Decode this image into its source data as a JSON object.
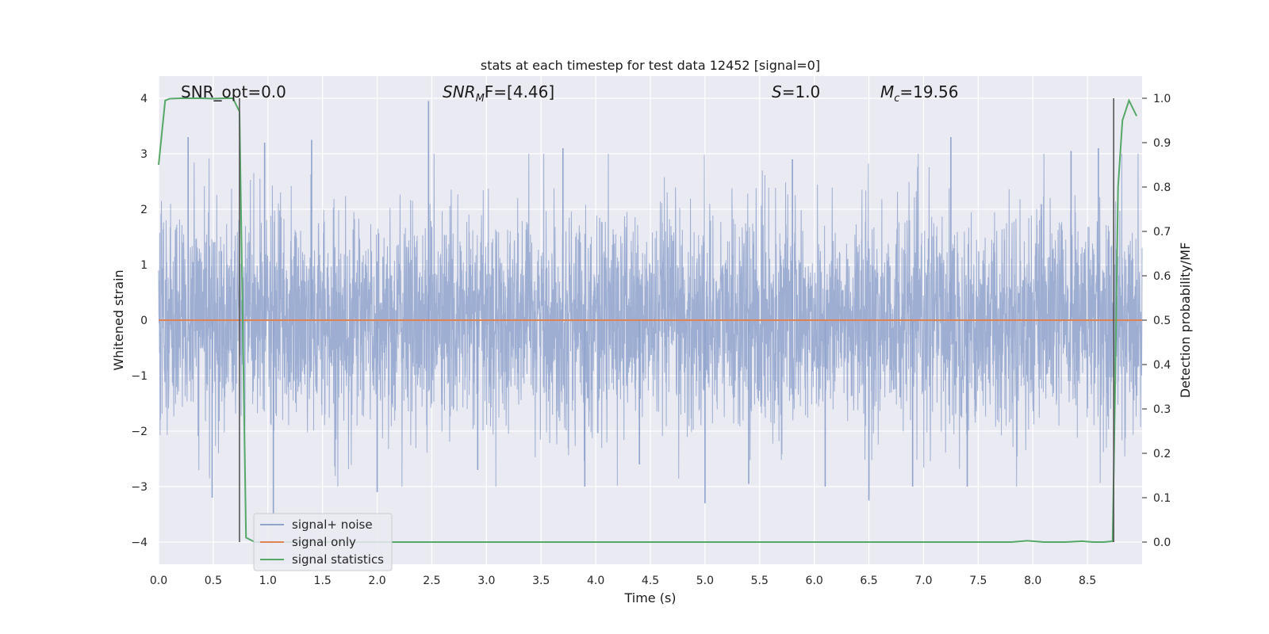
{
  "chart_data": {
    "type": "line",
    "title": "stats at each timestep for test data 12452 [signal=0]",
    "xlabel": "Time (s)",
    "ylabel_left": "Whitened strain",
    "ylabel_right": "Detection probability/MF",
    "xlim": [
      0,
      9.0
    ],
    "ylim_left": [
      -4.4,
      4.4
    ],
    "ylim_right": [
      -0.05,
      1.05
    ],
    "xticks": [
      0.0,
      0.5,
      1.0,
      1.5,
      2.0,
      2.5,
      3.0,
      3.5,
      4.0,
      4.5,
      5.0,
      5.5,
      6.0,
      6.5,
      7.0,
      7.5,
      8.0,
      8.5
    ],
    "xtick_labels": [
      "0.0",
      "0.5",
      "1.0",
      "1.5",
      "2.0",
      "2.5",
      "3.0",
      "3.5",
      "4.0",
      "4.5",
      "5.0",
      "5.5",
      "6.0",
      "6.5",
      "7.0",
      "7.5",
      "8.0",
      "8.5"
    ],
    "yticks_left": [
      4,
      3,
      2,
      1,
      0,
      -1,
      -2,
      -3,
      -4
    ],
    "ytick_labels_left": [
      "4",
      "3",
      "2",
      "1",
      "0",
      "−1",
      "−2",
      "−3",
      "−4"
    ],
    "yticks_right": [
      1.0,
      0.9,
      0.8,
      0.7,
      0.6,
      0.5,
      0.4,
      0.3,
      0.2,
      0.1,
      0.0
    ],
    "ytick_labels_right": [
      "1.0",
      "0.9",
      "0.8",
      "0.7",
      "0.6",
      "0.5",
      "0.4",
      "0.3",
      "0.2",
      "0.1",
      "0.0"
    ],
    "grid": true,
    "legend_placement": "lower-left",
    "annotations": {
      "snr_opt": "SNR_opt=0.0",
      "snr_mf_main": "SNR",
      "snr_mf_sub": "M",
      "snr_mf_rest": "F=[4.46]",
      "s_main": "S",
      "s_rest": "=1.0",
      "mc_main": "M",
      "mc_sub": "c",
      "mc_rest": "=19.56"
    },
    "vertical_markers": [
      0.74,
      8.74
    ],
    "series": [
      {
        "name": "signal+ noise",
        "color": "#8fa3cc",
        "axis": "left",
        "description": "dense noise trace, roughly within -3.5..4",
        "envelope_peaks": [
          [
            0.27,
            3.3
          ],
          [
            0.49,
            -3.2
          ],
          [
            0.97,
            3.2
          ],
          [
            1.05,
            -3.5
          ],
          [
            1.4,
            3.25
          ],
          [
            2.0,
            -3.1
          ],
          [
            2.47,
            3.95
          ],
          [
            2.92,
            -2.7
          ],
          [
            3.7,
            3.1
          ],
          [
            3.9,
            -3.0
          ],
          [
            4.4,
            -2.6
          ],
          [
            5.0,
            -3.3
          ],
          [
            5.4,
            -2.95
          ],
          [
            5.8,
            2.9
          ],
          [
            6.1,
            -3.0
          ],
          [
            6.5,
            -3.25
          ],
          [
            6.9,
            -3.0
          ],
          [
            7.25,
            3.3
          ],
          [
            7.4,
            -3.0
          ],
          [
            8.35,
            3.05
          ],
          [
            8.6,
            3.1
          ]
        ]
      },
      {
        "name": "signal only",
        "color": "#dd8452",
        "axis": "left",
        "x": [
          0.0,
          9.0
        ],
        "y": [
          0.0,
          0.0
        ]
      },
      {
        "name": "signal statistics",
        "color": "#55a868",
        "axis": "right",
        "x": [
          0.0,
          0.06,
          0.1,
          0.2,
          0.3,
          0.4,
          0.5,
          0.6,
          0.68,
          0.74,
          0.8,
          0.88,
          1.0,
          2.0,
          3.0,
          4.0,
          5.0,
          6.0,
          7.0,
          7.8,
          7.95,
          8.0,
          8.1,
          8.3,
          8.45,
          8.55,
          8.65,
          8.73,
          8.75,
          8.78,
          8.82,
          8.88,
          8.95
        ],
        "y": [
          0.85,
          0.995,
          0.999,
          1.0,
          1.0,
          1.0,
          0.999,
          1.0,
          1.0,
          0.97,
          0.01,
          0.0,
          0.0,
          0.0,
          0.0,
          0.0,
          0.0,
          0.0,
          0.0,
          0.0,
          0.003,
          0.002,
          0.0,
          0.0,
          0.002,
          0.0,
          0.0,
          0.002,
          0.3,
          0.8,
          0.95,
          0.995,
          0.96
        ]
      }
    ]
  }
}
